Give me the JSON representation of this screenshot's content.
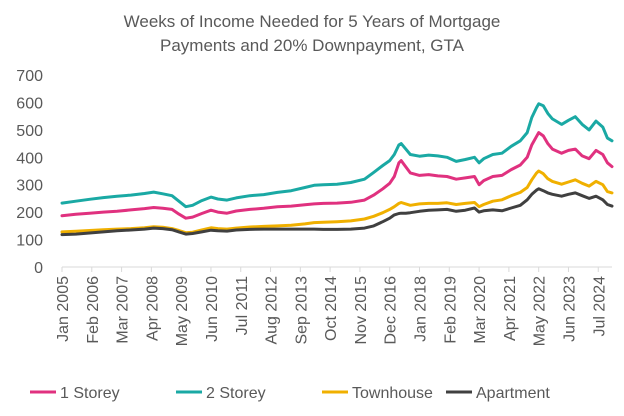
{
  "chart_data": {
    "type": "line",
    "title": "Weeks of Income Needed for 5 Years of Mortgage Payments and 20% Downpayment, GTA",
    "title_lines": [
      "Weeks of Income Needed for 5 Years of Mortgage",
      "Payments and 20% Downpayment, GTA"
    ],
    "xlabel": "",
    "ylabel": "",
    "ylim": [
      0,
      700
    ],
    "y_ticks": [
      "0",
      "100",
      "200",
      "300",
      "400",
      "500",
      "600",
      "700"
    ],
    "x_tick_labels": [
      "Jan 2005",
      "Feb 2006",
      "Mar 2007",
      "Apr 2008",
      "May 2009",
      "Jun 2010",
      "Jul 2011",
      "Aug 2012",
      "Sep 2013",
      "Oct 2014",
      "Nov 2015",
      "Dec 2016",
      "Jan 2018",
      "Feb 2019",
      "Mar 2020",
      "Apr 2021",
      "May 2022",
      "Jun 2023",
      "Jul 2024"
    ],
    "x_tick_months": [
      0,
      13,
      26,
      39,
      52,
      65,
      78,
      91,
      104,
      117,
      130,
      143,
      156,
      169,
      182,
      195,
      208,
      221,
      234
    ],
    "x_range_months": [
      0,
      240
    ],
    "grid": false,
    "legend_position": "bottom",
    "series": [
      {
        "name": "1 Storey",
        "color": "#e0317f",
        "points": [
          [
            0,
            187
          ],
          [
            6,
            192
          ],
          [
            12,
            196
          ],
          [
            18,
            200
          ],
          [
            24,
            203
          ],
          [
            30,
            208
          ],
          [
            36,
            213
          ],
          [
            40,
            217
          ],
          [
            44,
            214
          ],
          [
            48,
            210
          ],
          [
            51,
            193
          ],
          [
            54,
            178
          ],
          [
            57,
            182
          ],
          [
            61,
            195
          ],
          [
            65,
            207
          ],
          [
            68,
            200
          ],
          [
            72,
            196
          ],
          [
            76,
            204
          ],
          [
            82,
            210
          ],
          [
            88,
            214
          ],
          [
            94,
            220
          ],
          [
            100,
            222
          ],
          [
            106,
            227
          ],
          [
            110,
            230
          ],
          [
            114,
            232
          ],
          [
            120,
            233
          ],
          [
            126,
            236
          ],
          [
            132,
            244
          ],
          [
            136,
            262
          ],
          [
            140,
            285
          ],
          [
            143,
            305
          ],
          [
            145,
            330
          ],
          [
            147,
            380
          ],
          [
            148,
            388
          ],
          [
            150,
            365
          ],
          [
            152,
            343
          ],
          [
            156,
            334
          ],
          [
            160,
            337
          ],
          [
            164,
            332
          ],
          [
            168,
            330
          ],
          [
            172,
            320
          ],
          [
            176,
            325
          ],
          [
            180,
            330
          ],
          [
            182,
            300
          ],
          [
            184,
            315
          ],
          [
            188,
            330
          ],
          [
            192,
            334
          ],
          [
            196,
            355
          ],
          [
            200,
            372
          ],
          [
            203,
            400
          ],
          [
            205,
            445
          ],
          [
            207,
            475
          ],
          [
            208,
            490
          ],
          [
            210,
            478
          ],
          [
            212,
            450
          ],
          [
            214,
            430
          ],
          [
            218,
            415
          ],
          [
            221,
            425
          ],
          [
            224,
            430
          ],
          [
            227,
            405
          ],
          [
            230,
            395
          ],
          [
            233,
            425
          ],
          [
            236,
            410
          ],
          [
            238,
            380
          ],
          [
            240,
            366
          ]
        ]
      },
      {
        "name": "2 Storey",
        "color": "#1aa9a4",
        "points": [
          [
            0,
            233
          ],
          [
            6,
            240
          ],
          [
            12,
            247
          ],
          [
            18,
            253
          ],
          [
            24,
            258
          ],
          [
            30,
            262
          ],
          [
            36,
            268
          ],
          [
            40,
            273
          ],
          [
            44,
            267
          ],
          [
            48,
            260
          ],
          [
            51,
            240
          ],
          [
            54,
            220
          ],
          [
            57,
            225
          ],
          [
            61,
            242
          ],
          [
            65,
            255
          ],
          [
            68,
            248
          ],
          [
            72,
            244
          ],
          [
            76,
            252
          ],
          [
            82,
            260
          ],
          [
            88,
            264
          ],
          [
            94,
            272
          ],
          [
            100,
            278
          ],
          [
            106,
            290
          ],
          [
            110,
            298
          ],
          [
            114,
            300
          ],
          [
            120,
            302
          ],
          [
            126,
            308
          ],
          [
            132,
            320
          ],
          [
            136,
            345
          ],
          [
            140,
            370
          ],
          [
            143,
            388
          ],
          [
            145,
            410
          ],
          [
            147,
            445
          ],
          [
            148,
            450
          ],
          [
            150,
            430
          ],
          [
            152,
            410
          ],
          [
            156,
            404
          ],
          [
            160,
            408
          ],
          [
            164,
            405
          ],
          [
            168,
            400
          ],
          [
            172,
            385
          ],
          [
            176,
            392
          ],
          [
            180,
            400
          ],
          [
            182,
            380
          ],
          [
            184,
            395
          ],
          [
            188,
            410
          ],
          [
            192,
            415
          ],
          [
            196,
            440
          ],
          [
            200,
            460
          ],
          [
            203,
            490
          ],
          [
            205,
            545
          ],
          [
            207,
            580
          ],
          [
            208,
            595
          ],
          [
            210,
            588
          ],
          [
            212,
            560
          ],
          [
            214,
            540
          ],
          [
            218,
            520
          ],
          [
            221,
            535
          ],
          [
            224,
            548
          ],
          [
            227,
            520
          ],
          [
            230,
            500
          ],
          [
            233,
            532
          ],
          [
            236,
            510
          ],
          [
            238,
            470
          ],
          [
            240,
            460
          ]
        ]
      },
      {
        "name": "Townhouse",
        "color": "#f0b000",
        "points": [
          [
            0,
            128
          ],
          [
            6,
            130
          ],
          [
            12,
            133
          ],
          [
            18,
            136
          ],
          [
            24,
            138
          ],
          [
            30,
            140
          ],
          [
            36,
            143
          ],
          [
            40,
            147
          ],
          [
            44,
            145
          ],
          [
            48,
            140
          ],
          [
            51,
            133
          ],
          [
            54,
            125
          ],
          [
            57,
            127
          ],
          [
            61,
            135
          ],
          [
            65,
            143
          ],
          [
            68,
            140
          ],
          [
            72,
            138
          ],
          [
            76,
            142
          ],
          [
            82,
            146
          ],
          [
            88,
            148
          ],
          [
            94,
            150
          ],
          [
            100,
            152
          ],
          [
            106,
            157
          ],
          [
            110,
            162
          ],
          [
            114,
            163
          ],
          [
            120,
            165
          ],
          [
            126,
            168
          ],
          [
            132,
            175
          ],
          [
            136,
            185
          ],
          [
            140,
            198
          ],
          [
            143,
            210
          ],
          [
            145,
            220
          ],
          [
            147,
            232
          ],
          [
            148,
            235
          ],
          [
            150,
            230
          ],
          [
            152,
            225
          ],
          [
            156,
            230
          ],
          [
            160,
            232
          ],
          [
            164,
            232
          ],
          [
            168,
            234
          ],
          [
            172,
            228
          ],
          [
            176,
            232
          ],
          [
            180,
            235
          ],
          [
            182,
            220
          ],
          [
            184,
            228
          ],
          [
            188,
            240
          ],
          [
            192,
            245
          ],
          [
            196,
            260
          ],
          [
            200,
            272
          ],
          [
            203,
            290
          ],
          [
            205,
            318
          ],
          [
            207,
            342
          ],
          [
            208,
            350
          ],
          [
            210,
            340
          ],
          [
            212,
            322
          ],
          [
            214,
            312
          ],
          [
            218,
            302
          ],
          [
            221,
            310
          ],
          [
            224,
            318
          ],
          [
            227,
            305
          ],
          [
            230,
            295
          ],
          [
            233,
            312
          ],
          [
            236,
            300
          ],
          [
            238,
            275
          ],
          [
            240,
            270
          ]
        ]
      },
      {
        "name": "Apartment",
        "color": "#404040",
        "points": [
          [
            0,
            118
          ],
          [
            6,
            120
          ],
          [
            12,
            124
          ],
          [
            18,
            128
          ],
          [
            24,
            132
          ],
          [
            30,
            135
          ],
          [
            36,
            138
          ],
          [
            40,
            142
          ],
          [
            44,
            140
          ],
          [
            48,
            136
          ],
          [
            51,
            128
          ],
          [
            54,
            120
          ],
          [
            57,
            122
          ],
          [
            61,
            128
          ],
          [
            65,
            134
          ],
          [
            68,
            132
          ],
          [
            72,
            131
          ],
          [
            76,
            135
          ],
          [
            82,
            137
          ],
          [
            88,
            138
          ],
          [
            94,
            138
          ],
          [
            100,
            138
          ],
          [
            106,
            138
          ],
          [
            110,
            138
          ],
          [
            114,
            137
          ],
          [
            120,
            137
          ],
          [
            126,
            138
          ],
          [
            132,
            142
          ],
          [
            136,
            150
          ],
          [
            140,
            165
          ],
          [
            143,
            178
          ],
          [
            145,
            190
          ],
          [
            147,
            195
          ],
          [
            148,
            196
          ],
          [
            150,
            196
          ],
          [
            152,
            198
          ],
          [
            156,
            203
          ],
          [
            160,
            207
          ],
          [
            164,
            208
          ],
          [
            168,
            210
          ],
          [
            172,
            203
          ],
          [
            176,
            207
          ],
          [
            180,
            215
          ],
          [
            182,
            200
          ],
          [
            184,
            205
          ],
          [
            188,
            208
          ],
          [
            192,
            205
          ],
          [
            196,
            215
          ],
          [
            200,
            225
          ],
          [
            203,
            245
          ],
          [
            205,
            265
          ],
          [
            207,
            280
          ],
          [
            208,
            285
          ],
          [
            210,
            278
          ],
          [
            212,
            270
          ],
          [
            214,
            265
          ],
          [
            218,
            258
          ],
          [
            221,
            265
          ],
          [
            224,
            270
          ],
          [
            227,
            260
          ],
          [
            230,
            250
          ],
          [
            233,
            258
          ],
          [
            236,
            245
          ],
          [
            238,
            228
          ],
          [
            240,
            222
          ]
        ]
      }
    ]
  }
}
